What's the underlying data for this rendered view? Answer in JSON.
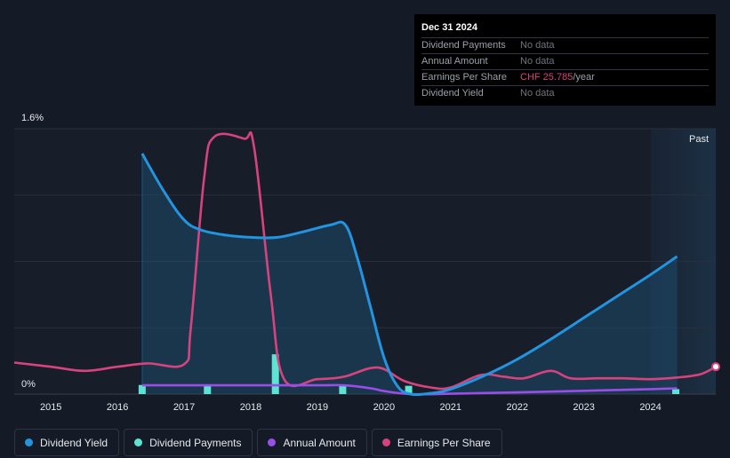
{
  "tooltip": {
    "date": "Dec 31 2024",
    "rows": [
      {
        "label": "Dividend Payments",
        "value": "No data"
      },
      {
        "label": "Annual Amount",
        "value": "No data"
      },
      {
        "label": "Earnings Per Share",
        "value": "CHF 25.785",
        "unit": "/year"
      },
      {
        "label": "Dividend Yield",
        "value": "No data"
      }
    ]
  },
  "past_label": "Past",
  "legend": [
    {
      "label": "Dividend Yield",
      "color": "#2394df"
    },
    {
      "label": "Dividend Payments",
      "color": "#5ee3d2"
    },
    {
      "label": "Annual Amount",
      "color": "#9b4de8"
    },
    {
      "label": "Earnings Per Share",
      "color": "#d7437d"
    }
  ],
  "chart_data": {
    "type": "line",
    "title": "",
    "xlabel": "",
    "ylabel": "",
    "y_tick_labels": [
      "1.6%",
      "0%"
    ],
    "ylim": [
      0,
      1.6
    ],
    "xlim": [
      2014.45,
      2024.98
    ],
    "x_tick_labels": [
      "2015",
      "2016",
      "2017",
      "2018",
      "2019",
      "2020",
      "2021",
      "2022",
      "2023",
      "2024"
    ],
    "x_ticks": [
      2015,
      2016,
      2017,
      2018,
      2019,
      2020,
      2021,
      2022,
      2023,
      2024
    ],
    "series": [
      {
        "name": "Dividend Yield",
        "color": "#2394df",
        "area": true,
        "x": [
          2016.37,
          2016.7,
          2017.0,
          2017.25,
          2017.6,
          2018.0,
          2018.4,
          2018.8,
          2019.2,
          2019.42,
          2019.6,
          2019.8,
          2020.0,
          2020.2,
          2020.4,
          2020.7,
          2021.0,
          2021.5,
          2022.0,
          2022.5,
          2023.0,
          2023.5,
          2024.0,
          2024.4
        ],
        "y": [
          1.45,
          1.22,
          1.05,
          0.99,
          0.96,
          0.945,
          0.945,
          0.98,
          1.02,
          1.02,
          0.82,
          0.52,
          0.22,
          0.05,
          0.0,
          0.005,
          0.03,
          0.11,
          0.21,
          0.33,
          0.46,
          0.59,
          0.72,
          0.83
        ]
      },
      {
        "name": "Earnings Per Share",
        "color": "#d7437d",
        "x": [
          2014.45,
          2015.0,
          2015.5,
          2016.0,
          2016.45,
          2017.0,
          2017.1,
          2017.3,
          2017.45,
          2017.9,
          2018.05,
          2018.3,
          2018.5,
          2019.0,
          2019.4,
          2019.9,
          2020.3,
          2020.7,
          2021.0,
          2021.45,
          2021.8,
          2022.1,
          2022.5,
          2022.8,
          2023.2,
          2023.6,
          2024.0,
          2024.4,
          2024.75,
          2024.98
        ],
        "y": [
          0.19,
          0.165,
          0.14,
          0.165,
          0.185,
          0.18,
          0.4,
          1.3,
          1.55,
          1.54,
          1.49,
          0.6,
          0.09,
          0.09,
          0.105,
          0.16,
          0.08,
          0.04,
          0.04,
          0.115,
          0.105,
          0.095,
          0.14,
          0.095,
          0.095,
          0.095,
          0.09,
          0.1,
          0.12,
          0.165
        ]
      },
      {
        "name": "Annual Amount",
        "color": "#9b4de8",
        "x": [
          2016.37,
          2017.0,
          2018.0,
          2019.0,
          2019.4,
          2019.8,
          2020.0,
          2020.4,
          2021.0,
          2022.0,
          2023.0,
          2024.0,
          2024.4
        ],
        "y": [
          0.053,
          0.053,
          0.053,
          0.053,
          0.053,
          0.035,
          0.018,
          0.0,
          0.002,
          0.01,
          0.02,
          0.03,
          0.035
        ]
      }
    ],
    "bars": {
      "name": "Dividend Payments",
      "color": "#5ee3d2",
      "x": [
        2016.37,
        2017.35,
        2018.37,
        2019.38,
        2020.37,
        2024.38
      ],
      "y": [
        0.055,
        0.05,
        0.24,
        0.05,
        0.05,
        0.03
      ]
    },
    "markers": [
      {
        "series": "Earnings Per Share",
        "x": 2024.98,
        "y": 0.165
      }
    ]
  }
}
